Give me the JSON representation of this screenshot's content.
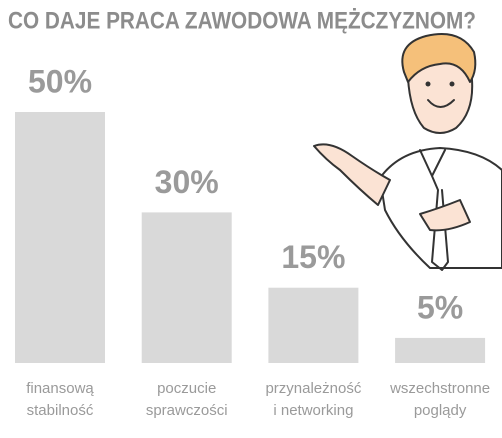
{
  "chart_data": {
    "type": "bar",
    "title": "CO DAJE PRACA ZAWODOWA MĘŻCZYZNOM?",
    "categories": [
      [
        "finansową",
        "stabilność"
      ],
      [
        "poczucie",
        "sprawczości"
      ],
      [
        "przynależność",
        "i networking"
      ],
      [
        "wszechstronne",
        "poglądy"
      ]
    ],
    "values": [
      50,
      30,
      15,
      5
    ],
    "value_labels": [
      "50%",
      "30%",
      "15%",
      "5%"
    ],
    "color": "#d9d9d9"
  }
}
